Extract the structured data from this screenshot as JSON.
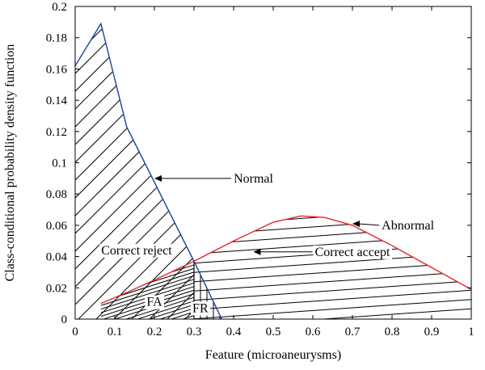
{
  "chart_data": {
    "type": "line",
    "xlabel": "Feature (microaneurysms)",
    "ylabel": "Class-conditional probability density function",
    "xlim": [
      0,
      1
    ],
    "ylim": [
      0,
      0.2
    ],
    "grid": false,
    "xticks": [
      "0",
      "0.1",
      "0.2",
      "0.3",
      "0.4",
      "0.5",
      "0.6",
      "0.7",
      "0.8",
      "0.9",
      "1"
    ],
    "yticks": [
      "0",
      "0.02",
      "0.04",
      "0.06",
      "0.08",
      "0.1",
      "0.12",
      "0.14",
      "0.16",
      "0.18",
      "0.2"
    ],
    "threshold_x": 0.3,
    "series": [
      {
        "name": "Normal",
        "color": "#1f3f9f",
        "x": [
          0,
          0.065,
          0.13,
          0.3,
          0.37
        ],
        "y": [
          0.162,
          0.189,
          0.123,
          0.037,
          0
        ]
      },
      {
        "name": "Abnormal",
        "color": "#e3262a",
        "x": [
          0.065,
          0.13,
          0.2,
          0.3,
          0.4,
          0.5,
          0.57,
          0.63,
          0.7,
          0.8,
          0.9,
          1.0
        ],
        "y": [
          0.01,
          0.017,
          0.025,
          0.037,
          0.05,
          0.062,
          0.066,
          0.065,
          0.06,
          0.047,
          0.033,
          0.019
        ]
      }
    ],
    "annotations": [
      {
        "id": "normal",
        "text": "Normal",
        "x": 0.45,
        "y": 0.09,
        "arrow_to": [
          0.2,
          0.09
        ]
      },
      {
        "id": "abnormal",
        "text": "Abnormal",
        "x": 0.84,
        "y": 0.06,
        "arrow_to": [
          0.7,
          0.061
        ]
      },
      {
        "id": "correct-accept",
        "text": "Correct accept",
        "x": 0.7,
        "y": 0.043,
        "arrow_to": [
          0.45,
          0.043
        ]
      },
      {
        "id": "correct-reject",
        "text": "Correct reject",
        "x": 0.155,
        "y": 0.044
      },
      {
        "id": "fa",
        "text": "FA",
        "x": 0.2,
        "y": 0.011
      },
      {
        "id": "fr",
        "text": "FR",
        "x": 0.316,
        "y": 0.007
      }
    ]
  }
}
